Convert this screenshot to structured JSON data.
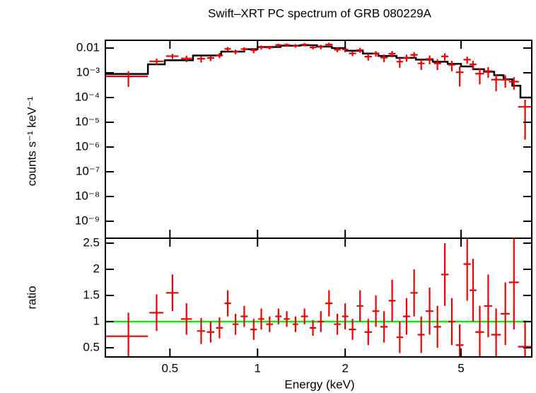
{
  "chart_data": [
    {
      "type": "errorbar",
      "title": "Swift–XRT PC spectrum of GRB 080229A",
      "ylabel": "counts s⁻¹ keV⁻¹",
      "log_x": true,
      "log_y": true,
      "color": "#ee0000",
      "xlim": [
        0.3,
        8.75
      ],
      "ylim": [
        2.06e-10,
        0.0206
      ],
      "yticks": [
        0.01,
        {
          "value": 0.001,
          "label": "10⁻³"
        },
        {
          "value": 0.0001,
          "label": "10⁻⁴"
        },
        {
          "value": 1e-05,
          "label": "10⁻⁵"
        },
        {
          "value": 1e-06,
          "label": "10⁻⁶"
        },
        {
          "value": 1e-07,
          "label": "10⁻⁷"
        },
        {
          "value": 1e-08,
          "label": "10⁻⁸"
        },
        {
          "value": 1e-09,
          "label": "10⁻⁹"
        }
      ],
      "x": [
        0.36,
        0.45,
        0.51,
        0.57,
        0.64,
        0.69,
        0.74,
        0.79,
        0.84,
        0.9,
        0.97,
        1.03,
        1.1,
        1.18,
        1.26,
        1.35,
        1.45,
        1.55,
        1.65,
        1.76,
        1.88,
        2.0,
        2.12,
        2.25,
        2.4,
        2.55,
        2.72,
        2.9,
        3.08,
        3.25,
        3.45,
        3.65,
        3.9,
        4.15,
        4.4,
        4.65,
        4.95,
        5.25,
        5.5,
        5.8,
        6.2,
        6.6,
        7.1,
        7.6,
        8.3
      ],
      "xerr": [
        0.06,
        0.025,
        0.025,
        0.025,
        0.02,
        0.02,
        0.02,
        0.02,
        0.02,
        0.025,
        0.025,
        0.025,
        0.03,
        0.03,
        0.03,
        0.03,
        0.04,
        0.04,
        0.04,
        0.05,
        0.05,
        0.05,
        0.06,
        0.06,
        0.07,
        0.07,
        0.08,
        0.08,
        0.08,
        0.09,
        0.1,
        0.1,
        0.12,
        0.12,
        0.13,
        0.13,
        0.15,
        0.15,
        0.15,
        0.2,
        0.2,
        0.25,
        0.25,
        0.3,
        0.45
      ],
      "values": [
        0.00072,
        0.0029,
        0.0047,
        0.0038,
        0.0037,
        0.004,
        0.0051,
        0.0092,
        0.0071,
        0.0091,
        0.0081,
        0.0107,
        0.0105,
        0.0132,
        0.0134,
        0.0124,
        0.0138,
        0.0106,
        0.0112,
        0.0138,
        0.0086,
        0.0088,
        0.0061,
        0.0083,
        0.0045,
        0.006,
        0.0041,
        0.0059,
        0.0028,
        0.0041,
        0.0053,
        0.0024,
        0.0036,
        0.0024,
        0.0046,
        0.0021,
        0.00105,
        0.0034,
        0.0022,
        0.00092,
        0.00117,
        0.00053,
        0.00052,
        0.00044,
        4.2e-05
      ],
      "errors": [
        0.00045,
        0.00087,
        0.0011,
        0.0011,
        0.0011,
        0.001,
        0.0012,
        0.0017,
        0.0015,
        0.0016,
        0.0019,
        0.002,
        0.0017,
        0.0018,
        0.0019,
        0.002,
        0.0019,
        0.0018,
        0.0022,
        0.0026,
        0.0018,
        0.002,
        0.0014,
        0.0019,
        0.0014,
        0.0015,
        0.0014,
        0.0017,
        0.0012,
        0.0013,
        0.0015,
        0.0011,
        0.0014,
        0.0011,
        0.0015,
        0.00095,
        0.00077,
        0.0011,
        0.00084,
        0.00058,
        0.00054,
        0.00035,
        0.00027,
        0.00023,
        4e-05
      ],
      "model": {
        "color": "#000000",
        "edges": [
          0.3,
          0.42,
          0.48,
          0.6,
          0.75,
          0.9,
          1.0,
          1.2,
          1.4,
          1.6,
          1.8,
          2.0,
          2.3,
          2.6,
          3.0,
          3.5,
          4.0,
          4.5,
          5.0,
          5.5,
          6.0,
          6.5,
          7.0,
          7.5,
          8.0,
          8.75
        ],
        "values": [
          0.0009,
          0.0022,
          0.0032,
          0.005,
          0.0072,
          0.009,
          0.011,
          0.0125,
          0.013,
          0.0115,
          0.01,
          0.0078,
          0.006,
          0.0048,
          0.004,
          0.0034,
          0.0028,
          0.0023,
          0.0018,
          0.0014,
          0.0011,
          0.0008,
          0.00055,
          0.0003,
          0.0001
        ]
      }
    },
    {
      "type": "errorbar",
      "ylabel": "ratio",
      "xlabel": "Energy (keV)",
      "log_x": true,
      "log_y": false,
      "color": "#ee0000",
      "xlim": [
        0.3,
        8.75
      ],
      "ylim": [
        0.324,
        2.595
      ],
      "xticks": [
        0.5,
        1,
        2,
        5
      ],
      "yticks": [
        0.5,
        1,
        1.5,
        2,
        2.5
      ],
      "reference": {
        "value": 1,
        "color": "#00ee00"
      },
      "x": [
        0.36,
        0.45,
        0.51,
        0.57,
        0.64,
        0.69,
        0.74,
        0.79,
        0.84,
        0.9,
        0.97,
        1.03,
        1.1,
        1.18,
        1.26,
        1.35,
        1.45,
        1.55,
        1.65,
        1.76,
        1.88,
        2.0,
        2.12,
        2.25,
        2.4,
        2.55,
        2.72,
        2.9,
        3.08,
        3.25,
        3.45,
        3.65,
        3.9,
        4.15,
        4.4,
        4.65,
        4.95,
        5.25,
        5.5,
        5.8,
        6.2,
        6.6,
        7.1,
        7.6,
        8.3
      ],
      "xerr": [
        0.06,
        0.025,
        0.025,
        0.025,
        0.02,
        0.02,
        0.02,
        0.02,
        0.02,
        0.025,
        0.025,
        0.025,
        0.03,
        0.03,
        0.03,
        0.03,
        0.04,
        0.04,
        0.04,
        0.05,
        0.05,
        0.05,
        0.06,
        0.06,
        0.07,
        0.07,
        0.08,
        0.08,
        0.08,
        0.09,
        0.1,
        0.1,
        0.12,
        0.12,
        0.13,
        0.13,
        0.15,
        0.15,
        0.15,
        0.2,
        0.2,
        0.25,
        0.25,
        0.3,
        0.45
      ],
      "values": [
        0.72,
        1.17,
        1.55,
        1.05,
        0.82,
        0.8,
        0.88,
        1.35,
        0.95,
        1.1,
        0.85,
        1.05,
        0.95,
        1.1,
        1.05,
        0.95,
        1.1,
        0.88,
        1.0,
        1.35,
        0.95,
        1.1,
        0.85,
        1.3,
        0.8,
        1.2,
        0.9,
        1.4,
        0.7,
        1.1,
        1.55,
        0.75,
        1.2,
        0.9,
        1.9,
        1.0,
        0.55,
        2.1,
        1.6,
        0.8,
        1.3,
        0.75,
        1.15,
        1.75,
        0.52
      ],
      "errors": [
        0.45,
        0.35,
        0.35,
        0.3,
        0.25,
        0.2,
        0.2,
        0.25,
        0.2,
        0.2,
        0.2,
        0.2,
        0.15,
        0.15,
        0.15,
        0.15,
        0.15,
        0.15,
        0.2,
        0.25,
        0.2,
        0.25,
        0.2,
        0.3,
        0.25,
        0.3,
        0.3,
        0.4,
        0.3,
        0.35,
        0.45,
        0.35,
        0.45,
        0.4,
        0.6,
        0.45,
        0.4,
        0.7,
        0.6,
        0.5,
        0.6,
        0.5,
        0.6,
        0.9,
        0.5
      ]
    }
  ]
}
